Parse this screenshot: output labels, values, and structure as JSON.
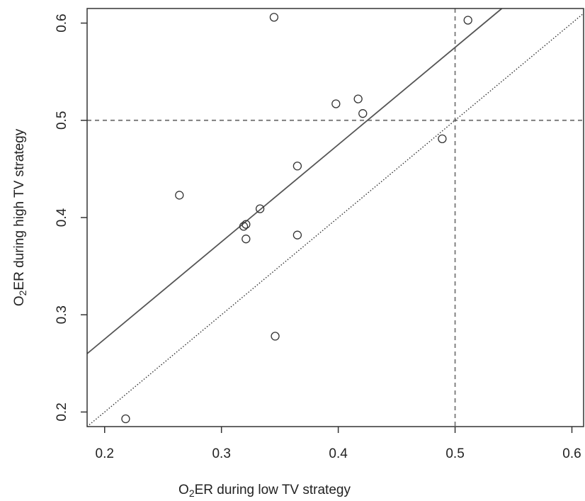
{
  "chart_data": {
    "type": "scatter",
    "xlabel": {
      "prefix": "O",
      "sub": "2",
      "suffix": "ER during low TV strategy"
    },
    "ylabel": {
      "prefix": "O",
      "sub": "2",
      "suffix": "ER during high TV strategy"
    },
    "xlim": [
      0.185,
      0.61
    ],
    "ylim": [
      0.185,
      0.615
    ],
    "x_ticks": [
      0.2,
      0.3,
      0.4,
      0.5,
      0.6
    ],
    "y_ticks": [
      0.2,
      0.3,
      0.4,
      0.5,
      0.6
    ],
    "x_tick_labels": [
      "0.2",
      "0.3",
      "0.4",
      "0.5",
      "0.6"
    ],
    "y_tick_labels": [
      "0.2",
      "0.3",
      "0.4",
      "0.5",
      "0.6"
    ],
    "grid": false,
    "points": [
      {
        "x": 0.218,
        "y": 0.193
      },
      {
        "x": 0.264,
        "y": 0.423
      },
      {
        "x": 0.319,
        "y": 0.391
      },
      {
        "x": 0.321,
        "y": 0.393
      },
      {
        "x": 0.321,
        "y": 0.378
      },
      {
        "x": 0.333,
        "y": 0.409
      },
      {
        "x": 0.345,
        "y": 0.606
      },
      {
        "x": 0.346,
        "y": 0.278
      },
      {
        "x": 0.365,
        "y": 0.453
      },
      {
        "x": 0.365,
        "y": 0.382
      },
      {
        "x": 0.398,
        "y": 0.517
      },
      {
        "x": 0.417,
        "y": 0.522
      },
      {
        "x": 0.421,
        "y": 0.507
      },
      {
        "x": 0.489,
        "y": 0.481
      },
      {
        "x": 0.511,
        "y": 0.603
      }
    ],
    "regression_line": {
      "slope": 1.0,
      "intercept": 0.075,
      "style": "solid",
      "color": "#555555"
    },
    "identity_line": {
      "slope": 1,
      "intercept": 0,
      "style": "dotted",
      "color": "#333333"
    },
    "reference_lines": [
      {
        "orientation": "vertical",
        "value": 0.5,
        "style": "dashed",
        "color": "#777777"
      },
      {
        "orientation": "horizontal",
        "value": 0.5,
        "style": "dashed",
        "color": "#777777"
      }
    ]
  }
}
